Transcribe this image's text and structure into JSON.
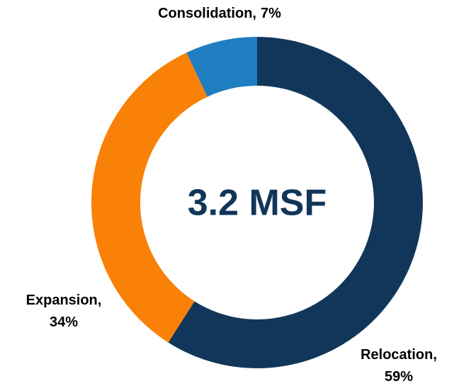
{
  "chart_data": {
    "type": "donut",
    "categories": [
      "Relocation,",
      "Expansion,",
      "Consolidation,"
    ],
    "values": [
      59,
      34,
      7
    ],
    "value_labels": [
      "59%",
      "34%",
      "7%"
    ],
    "colors": [
      "#12365a",
      "#f98107",
      "#1f7ec0"
    ],
    "center_label": "3.2 MSF"
  }
}
